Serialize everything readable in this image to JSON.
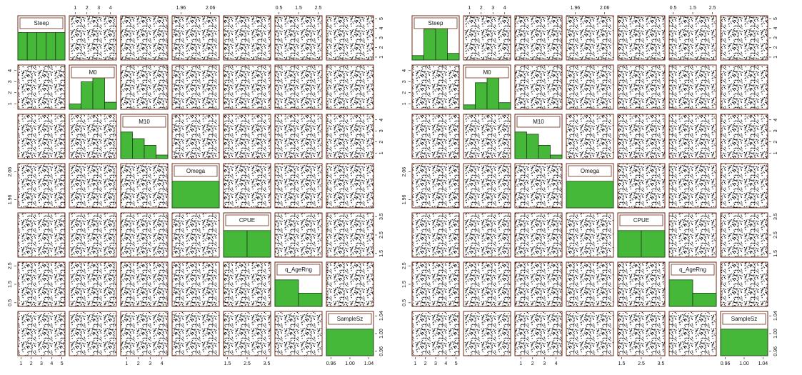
{
  "matrices": [
    {
      "variables": [
        {
          "name": "Steep",
          "lim": [
            0.7,
            5.3
          ],
          "ticks": [
            1,
            2,
            3,
            4,
            5
          ],
          "hist": [
            0.62,
            0.62,
            0.62,
            0.62,
            0.62
          ]
        },
        {
          "name": "M0",
          "lim": [
            0.5,
            4.5
          ],
          "ticks": [
            1,
            2,
            3,
            4
          ],
          "hist": [
            0.12,
            0.62,
            0.78,
            0.16
          ]
        },
        {
          "name": "M10",
          "lim": [
            0.5,
            4.5
          ],
          "ticks": [
            1,
            2,
            3,
            4
          ],
          "hist": [
            0.6,
            0.45,
            0.3,
            0.08
          ]
        },
        {
          "name": "Omega",
          "lim": [
            1.93,
            2.09
          ],
          "ticks": [
            1.96,
            2.06
          ],
          "hist": [
            0.6
          ]
        },
        {
          "name": "CPUE",
          "lim": [
            1.3,
            3.7
          ],
          "ticks": [
            1.5,
            2.5,
            3.5
          ],
          "hist": [
            0.6,
            0.6
          ]
        },
        {
          "name": "q_AgeRng",
          "lim": [
            0.3,
            2.7
          ],
          "ticks": [
            0.5,
            1.5,
            2.5
          ],
          "hist": [
            0.6,
            0.3
          ]
        },
        {
          "name": "SampleSz",
          "lim": [
            0.95,
            1.05
          ],
          "ticks": [
            {
              "value": 0.96,
              "label": "0.96"
            },
            {
              "value": 1.0,
              "label": "1.00"
            },
            {
              "value": 1.04,
              "label": "1.04"
            }
          ],
          "hist": [
            0.6
          ]
        }
      ]
    },
    {
      "variables": [
        {
          "name": "Steep",
          "lim": [
            0.7,
            5.3
          ],
          "ticks": [
            1,
            2,
            3,
            4,
            5
          ],
          "hist": [
            0.1,
            0.7,
            0.8,
            0.15
          ]
        },
        {
          "name": "M0",
          "lim": [
            0.5,
            4.5
          ],
          "ticks": [
            1,
            2,
            3,
            4
          ],
          "hist": [
            0.1,
            0.6,
            0.75,
            0.15
          ]
        },
        {
          "name": "M10",
          "lim": [
            0.5,
            4.5
          ],
          "ticks": [
            1,
            2,
            3,
            4
          ],
          "hist": [
            0.6,
            0.55,
            0.3,
            0.08
          ]
        },
        {
          "name": "Omega",
          "lim": [
            1.93,
            2.09
          ],
          "ticks": [
            1.96,
            2.06
          ],
          "hist": [
            0.6
          ]
        },
        {
          "name": "CPUE",
          "lim": [
            1.3,
            3.7
          ],
          "ticks": [
            1.5,
            2.5,
            3.5
          ],
          "hist": [
            0.6,
            0.6
          ]
        },
        {
          "name": "q_AgeRng",
          "lim": [
            0.3,
            2.7
          ],
          "ticks": [
            0.5,
            1.5,
            2.5
          ],
          "hist": [
            0.6,
            0.3
          ]
        },
        {
          "name": "SampleSz",
          "lim": [
            0.95,
            1.05
          ],
          "ticks": [
            {
              "value": 0.96,
              "label": "0.96"
            },
            {
              "value": 1.0,
              "label": "1.00"
            },
            {
              "value": 1.04,
              "label": "1.04"
            }
          ],
          "hist": [
            0.6
          ]
        }
      ]
    }
  ]
}
